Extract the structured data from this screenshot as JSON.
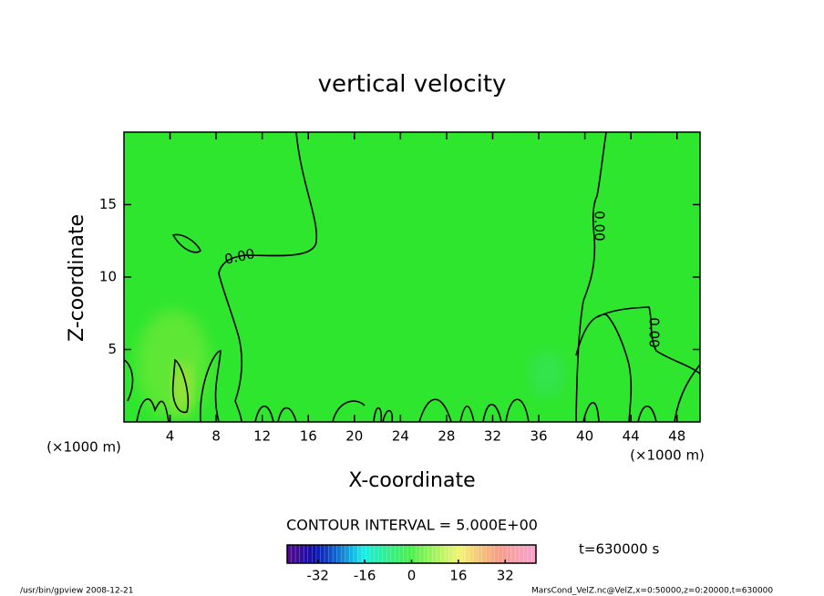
{
  "chart_data": {
    "type": "contour",
    "title": "vertical velocity",
    "x_label": "X-coordinate",
    "y_label": "Z-coordinate",
    "x_unit": "(×1000 m)",
    "y_unit": "(×1000 m)",
    "xlim": [
      0,
      50
    ],
    "xticks": [
      4,
      8,
      12,
      16,
      20,
      24,
      28,
      32,
      36,
      40,
      44,
      48
    ],
    "ylim": [
      0,
      20
    ],
    "yticks": [
      5,
      10,
      15
    ],
    "field_color": "#2ee62e",
    "contour_labels": [
      "0.00",
      "0.00",
      "0.00"
    ],
    "contour_interval_label": "CONTOUR INTERVAL = 5.000E+00",
    "time_label": "t=630000 s",
    "clim": [
      -42.5,
      42.5
    ],
    "cbar_ticks": [
      -32,
      -16,
      0,
      16,
      32
    ],
    "footer_left": "/usr/bin/gpview  2008-12-21",
    "footer_right": "MarsCond_VelZ.nc@VelZ,x=0:50000,z=0:20000,t=630000"
  }
}
